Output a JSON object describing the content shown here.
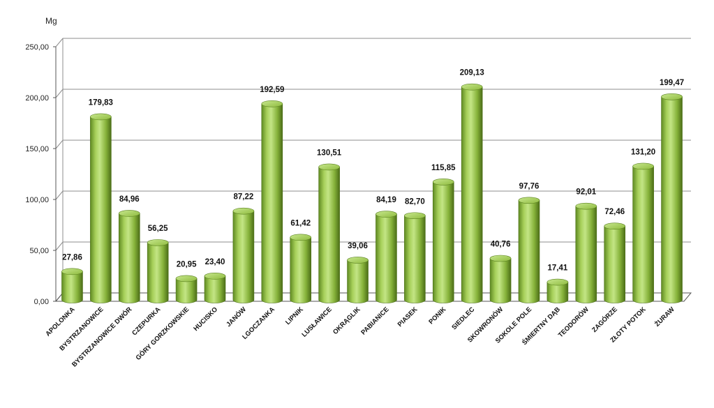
{
  "chart_data": {
    "type": "bar",
    "unit_label": "Mg",
    "categories": [
      "APOLONKA",
      "BYSTRZANOWICE",
      "BYSTRZANOWICE DWÓR",
      "CZEPURKA",
      "GÓRY GORZKOWSKIE",
      "HUCISKO",
      "JANÓW",
      "LGOCZANKA",
      "LIPNIK",
      "LUSŁAWICE",
      "OKRĄGLIK",
      "PABIANICE",
      "PIASEK",
      "PONIK",
      "SIEDLEC",
      "SKOWRONÓW",
      "SOKOLE POLE",
      "ŚMIERTNY DĄB",
      "TEODORÓW",
      "ZAGÓRZE",
      "ZŁOTY POTOK",
      "ŻURAW"
    ],
    "values": [
      27.86,
      179.83,
      84.96,
      56.25,
      20.95,
      23.4,
      87.22,
      192.59,
      61.42,
      130.51,
      39.06,
      84.19,
      82.7,
      115.85,
      209.13,
      40.76,
      97.76,
      17.41,
      92.01,
      72.46,
      131.2,
      199.47
    ],
    "value_labels": [
      "27,86",
      "179,83",
      "84,96",
      "56,25",
      "20,95",
      "23,40",
      "87,22",
      "192,59",
      "61,42",
      "130,51",
      "39,06",
      "84,19",
      "82,70",
      "115,85",
      "209,13",
      "40,76",
      "97,76",
      "17,41",
      "92,01",
      "72,46",
      "131,20",
      "199,47"
    ],
    "ylim": [
      0,
      250
    ],
    "yticks": [
      0,
      50,
      100,
      150,
      200,
      250
    ],
    "ytick_labels": [
      "0,00",
      "50,00",
      "100,00",
      "150,00",
      "200,00",
      "250,00"
    ],
    "grid": true,
    "legend": "none",
    "colors": {
      "bar_light": "#bfe07a",
      "bar_mid": "#8fbb3e",
      "bar_dark": "#557a1c",
      "bar_top": "#a9d155",
      "grid": "#8c8c8c"
    }
  }
}
